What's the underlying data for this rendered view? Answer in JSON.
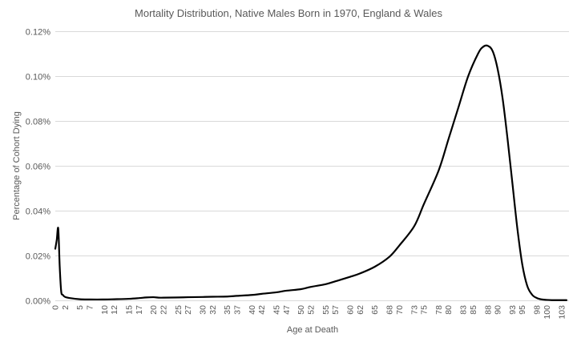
{
  "chart_data": {
    "type": "line",
    "title": "Mortality Distribution, Native Males Born in 1970, England & Wales",
    "xlabel": "Age at Death",
    "ylabel": "Percentage of Cohort Dying",
    "ylim": [
      0,
      0.12
    ],
    "y_ticks": [
      "0.00%",
      "0.02%",
      "0.04%",
      "0.06%",
      "0.08%",
      "0.10%",
      "0.12%"
    ],
    "x_tick_labels": [
      "0",
      "2",
      "5",
      "7",
      "10",
      "12",
      "15",
      "17",
      "20",
      "22",
      "25",
      "27",
      "30",
      "32",
      "35",
      "37",
      "40",
      "42",
      "45",
      "47",
      "50",
      "52",
      "55",
      "57",
      "60",
      "62",
      "65",
      "68",
      "70",
      "73",
      "75",
      "78",
      "80",
      "83",
      "85",
      "88",
      "90",
      "93",
      "95",
      "98",
      "100",
      "103"
    ],
    "grid": true,
    "legend": "none",
    "line_color": "#000000",
    "series": [
      {
        "x": [
          0,
          0.3,
          0.6,
          0.9,
          1.2,
          1.5,
          2,
          3,
          5,
          7,
          10,
          12,
          15,
          17,
          18.5,
          20,
          21,
          22,
          25,
          27,
          30,
          32,
          35,
          37,
          40,
          42,
          45,
          47,
          50,
          52,
          55,
          57,
          60,
          62,
          65,
          68,
          70,
          73,
          75,
          78,
          80,
          82,
          84,
          86,
          87,
          88,
          89,
          90,
          91,
          92,
          93,
          94,
          95,
          96,
          97,
          98,
          99,
          100,
          101,
          102,
          103,
          104
        ],
        "y": [
          0.023,
          0.027,
          0.032,
          0.015,
          0.004,
          0.0025,
          0.0015,
          0.001,
          0.0005,
          0.0004,
          0.0004,
          0.0005,
          0.0007,
          0.001,
          0.0013,
          0.0014,
          0.0012,
          0.0012,
          0.0013,
          0.0014,
          0.0015,
          0.0016,
          0.0017,
          0.002,
          0.0024,
          0.0029,
          0.0036,
          0.0043,
          0.005,
          0.006,
          0.0072,
          0.0085,
          0.0105,
          0.012,
          0.015,
          0.0195,
          0.0245,
          0.033,
          0.043,
          0.058,
          0.072,
          0.086,
          0.1,
          0.11,
          0.113,
          0.1135,
          0.111,
          0.103,
          0.09,
          0.072,
          0.052,
          0.032,
          0.016,
          0.0065,
          0.0025,
          0.001,
          0.0004,
          0.0002,
          0.0001,
          0.0001,
          0.0001,
          0.0001
        ]
      }
    ]
  }
}
